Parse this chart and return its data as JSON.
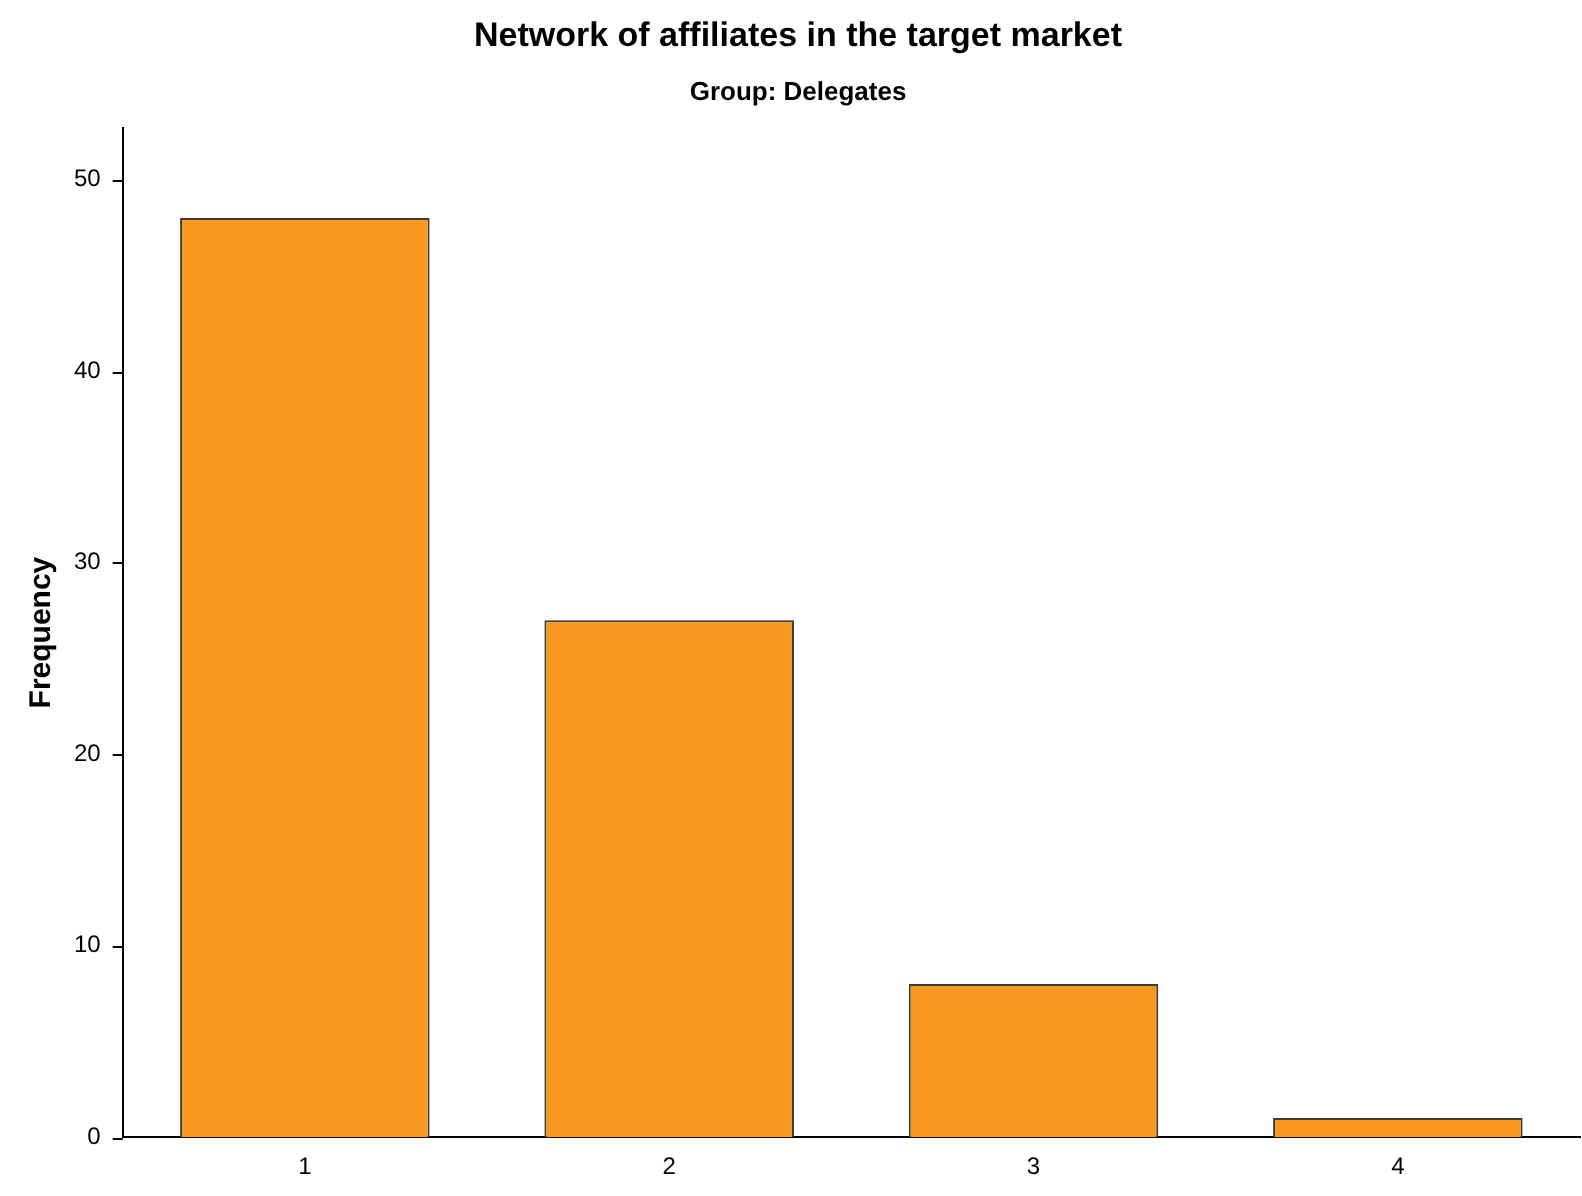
{
  "chart_data": {
    "type": "bar",
    "title": "Network of affiliates in the target market",
    "subtitle": "Group: Delegates",
    "ylabel": "Frequency",
    "categories": [
      "1",
      "2",
      "3",
      "4"
    ],
    "values": [
      48,
      27,
      8,
      1
    ],
    "color": "#f7991f",
    "ylim": [
      0,
      52.7
    ],
    "yticks": [
      0,
      10,
      20,
      30,
      40,
      50
    ],
    "grid": false,
    "legend": false
  }
}
